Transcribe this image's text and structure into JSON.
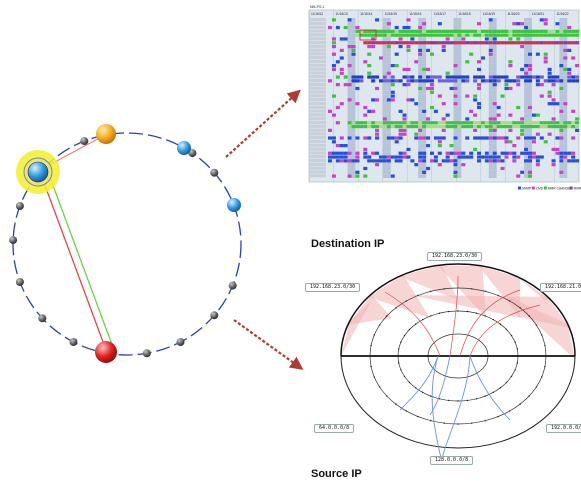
{
  "diagram": {
    "destination_title": "Destination IP",
    "source_title": "Source IP",
    "destination_labels": {
      "top": "192.168.23.0/30",
      "left": "192.168.23.0/30",
      "right": "192.168.21.0/30"
    },
    "source_labels": {
      "left": "64.0.0.0/8",
      "right": "192.0.0.0/8",
      "bottom": "128.0.0.0/8"
    },
    "matrix_header": "NM-PS-1",
    "matrix_col_labels": [
      "11/16/12",
      "11/16/13",
      "11/16/14",
      "11/16/15",
      "11/16/16",
      "11/16/17",
      "11/16/18",
      "11/16/19",
      "11/16/20",
      "11/16/21",
      "11/16/22"
    ],
    "matrix_legend": [
      "SNMP",
      "CMD",
      "MMR-CHANGED",
      "MMR-Conflicted"
    ],
    "colors": {
      "ring": "#2b3fb5",
      "node_gray": "#555555",
      "node_orange": "#f2a21a",
      "node_blue": "#2f9be0",
      "node_red": "#e52222",
      "highlight": "#f4ef2a",
      "line_red": "#e83a3a",
      "line_green": "#5fd23a",
      "arrow": "#b03a2e",
      "fan_red": "#f3b2b2",
      "fan_blue": "#8aa7e6"
    }
  }
}
